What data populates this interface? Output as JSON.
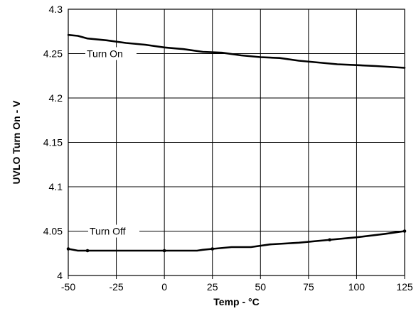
{
  "chart_data": {
    "type": "line",
    "xlabel": "Temp - °C",
    "ylabel": "UVLO Turn On - V",
    "xlim": [
      -50,
      125
    ],
    "ylim": [
      4,
      4.3
    ],
    "x_ticks": [
      -50,
      -25,
      0,
      25,
      50,
      75,
      100,
      125
    ],
    "y_ticks": [
      4,
      4.05,
      4.1,
      4.15,
      4.2,
      4.25,
      4.3
    ],
    "x_tick_labels": [
      "-50",
      "-25",
      "0",
      "25",
      "50",
      "75",
      "100",
      "125"
    ],
    "y_tick_labels": [
      "4",
      "4.05",
      "4.1",
      "4.15",
      "4.2",
      "4.25",
      "4.3"
    ],
    "grid": true,
    "series": [
      {
        "name": "Turn On",
        "x": [
          -50,
          -45,
          -40,
          -30,
          -20,
          -10,
          0,
          10,
          20,
          30,
          40,
          50,
          60,
          70,
          80,
          90,
          100,
          110,
          125
        ],
        "y": [
          4.271,
          4.27,
          4.267,
          4.265,
          4.262,
          4.26,
          4.257,
          4.255,
          4.252,
          4.251,
          4.248,
          4.246,
          4.245,
          4.242,
          4.24,
          4.238,
          4.237,
          4.236,
          4.234
        ]
      },
      {
        "name": "Turn Off",
        "x": [
          -50,
          -45,
          -40,
          -25,
          0,
          17,
          20,
          25,
          35,
          45,
          55,
          70,
          85,
          100,
          115,
          125
        ],
        "y": [
          4.03,
          4.028,
          4.028,
          4.028,
          4.028,
          4.028,
          4.029,
          4.03,
          4.032,
          4.032,
          4.035,
          4.037,
          4.04,
          4.043,
          4.047,
          4.05
        ]
      }
    ],
    "annotations": [
      {
        "text": "Turn On",
        "series": "Turn On"
      },
      {
        "text": "Turn Off",
        "series": "Turn Off"
      }
    ]
  }
}
